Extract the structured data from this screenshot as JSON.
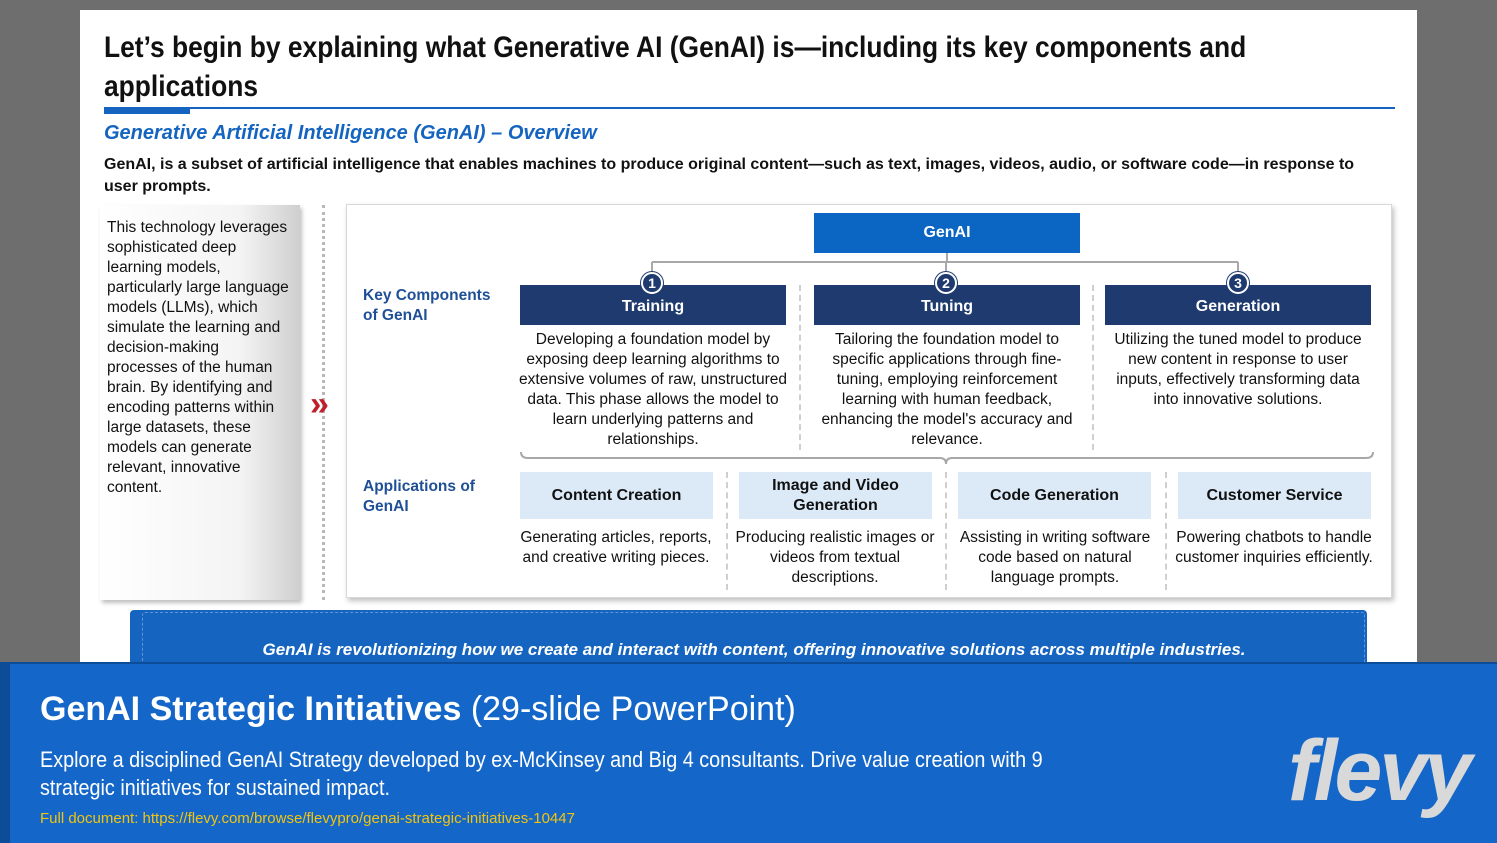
{
  "header": {
    "title": "Let’s begin by explaining what Generative AI (GenAI) is—including its key components and applications",
    "subtitle": "Generative Artificial Intelligence (GenAI) – Overview",
    "intro": "GenAI, is a subset of artificial intelligence that enables machines to produce original content—such as text, images, videos, audio, or software code—in response to user prompts."
  },
  "sidebar": "This technology leverages sophisticated deep learning models, particularly large language models (LLMs), which simulate the learning and decision-making processes of the human brain. By identifying and encoding patterns within large datasets, these models can generate relevant, innovative content.",
  "diagram": {
    "root": "GenAI",
    "components_label": "Key Components of GenAI",
    "applications_label": "Applications of GenAI",
    "components": [
      {
        "number": 1,
        "title": "Training",
        "description": "Developing a foundation model by exposing deep learning algorithms to extensive volumes of raw, unstructured data. This phase allows the model to learn underlying patterns and relationships."
      },
      {
        "number": 2,
        "title": "Tuning",
        "description": "Tailoring the foundation model to specific applications through fine-tuning, employing reinforcement learning with human feedback, enhancing the model's accuracy and relevance."
      },
      {
        "number": 3,
        "title": "Generation",
        "description": "Utilizing the tuned model to produce new content in response to user inputs, effectively transforming data into innovative solutions."
      }
    ],
    "applications": [
      {
        "title": "Content Creation",
        "description": "Generating articles, reports, and creative writing pieces."
      },
      {
        "title": "Image and Video Generation",
        "description": "Producing realistic images or videos from textual descriptions."
      },
      {
        "title": "Code Generation",
        "description": "Assisting in writing software code based on natural language prompts."
      },
      {
        "title": "Customer Service",
        "description": "Powering chatbots to handle customer inquiries efficiently."
      }
    ]
  },
  "banner": "GenAI is revolutionizing how we create and interact with content, offering innovative solutions across multiple industries.",
  "footer": {
    "title": "GenAI Strategic Initiatives",
    "title_suffix": "(29-slide PowerPoint)",
    "description": "Explore a disciplined GenAI Strategy developed by ex-McKinsey and Big 4 consultants. Drive value creation with 9 strategic initiatives for sustained impact.",
    "link": "Full document: https://flevy.com/browse/flevypro/genai-strategic-initiatives-10447",
    "logo": "flevy"
  }
}
